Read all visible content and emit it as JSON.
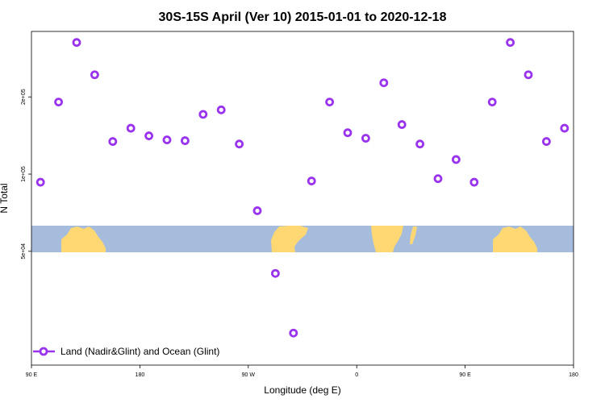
{
  "chart_data": {
    "type": "scatter",
    "title": "30S-15S April (Ver 10)   2015-01-01 to 2020-12-18",
    "xlabel": "Longitude (deg E)",
    "ylabel": "N Total",
    "x_ticks": [
      {
        "value": 90,
        "label": "90 E"
      },
      {
        "value": 180,
        "label": "180"
      },
      {
        "value": 270,
        "label": "90 W"
      },
      {
        "value": 360,
        "label": "0"
      },
      {
        "value": 450,
        "label": "90 E"
      },
      {
        "value": 540,
        "label": "180"
      }
    ],
    "y_ticks": [
      {
        "value": 50000,
        "label": "5e+04"
      },
      {
        "value": 100000,
        "label": "1e+05"
      },
      {
        "value": 200000,
        "label": "2e+05"
      }
    ],
    "xlim": [
      90,
      540
    ],
    "ylim": [
      18000,
      360000
    ],
    "y_scale": "log",
    "grid": false,
    "legend_position": "bottom-left",
    "colors": {
      "series": "#9933ee",
      "ocean": "#a6bcdc",
      "land": "#ffd873"
    },
    "series": [
      {
        "name": "Land (Nadir&Glint) and Ocean (Glint)",
        "points": [
          {
            "x": 97.5,
            "y": 93000
          },
          {
            "x": 112.5,
            "y": 191000
          },
          {
            "x": 127.5,
            "y": 326000
          },
          {
            "x": 142.5,
            "y": 244000
          },
          {
            "x": 157.5,
            "y": 134000
          },
          {
            "x": 172.5,
            "y": 151000
          },
          {
            "x": 187.5,
            "y": 141000
          },
          {
            "x": 202.5,
            "y": 136000
          },
          {
            "x": 217.5,
            "y": 135000
          },
          {
            "x": 232.5,
            "y": 171000
          },
          {
            "x": 247.5,
            "y": 178000
          },
          {
            "x": 262.5,
            "y": 131000
          },
          {
            "x": 277.5,
            "y": 72000
          },
          {
            "x": 292.5,
            "y": 41000
          },
          {
            "x": 307.5,
            "y": 24000
          },
          {
            "x": 322.5,
            "y": 94000
          },
          {
            "x": 337.5,
            "y": 191000
          },
          {
            "x": 352.5,
            "y": 145000
          },
          {
            "x": 367.5,
            "y": 138000
          },
          {
            "x": 382.5,
            "y": 227000
          },
          {
            "x": 397.5,
            "y": 156000
          },
          {
            "x": 412.5,
            "y": 131000
          },
          {
            "x": 427.5,
            "y": 96000
          },
          {
            "x": 442.5,
            "y": 114000
          },
          {
            "x": 457.5,
            "y": 93000
          },
          {
            "x": 472.5,
            "y": 191000
          },
          {
            "x": 487.5,
            "y": 326000
          },
          {
            "x": 502.5,
            "y": 244000
          },
          {
            "x": 517.5,
            "y": 134000
          },
          {
            "x": 532.5,
            "y": 151000
          }
        ]
      }
    ]
  }
}
